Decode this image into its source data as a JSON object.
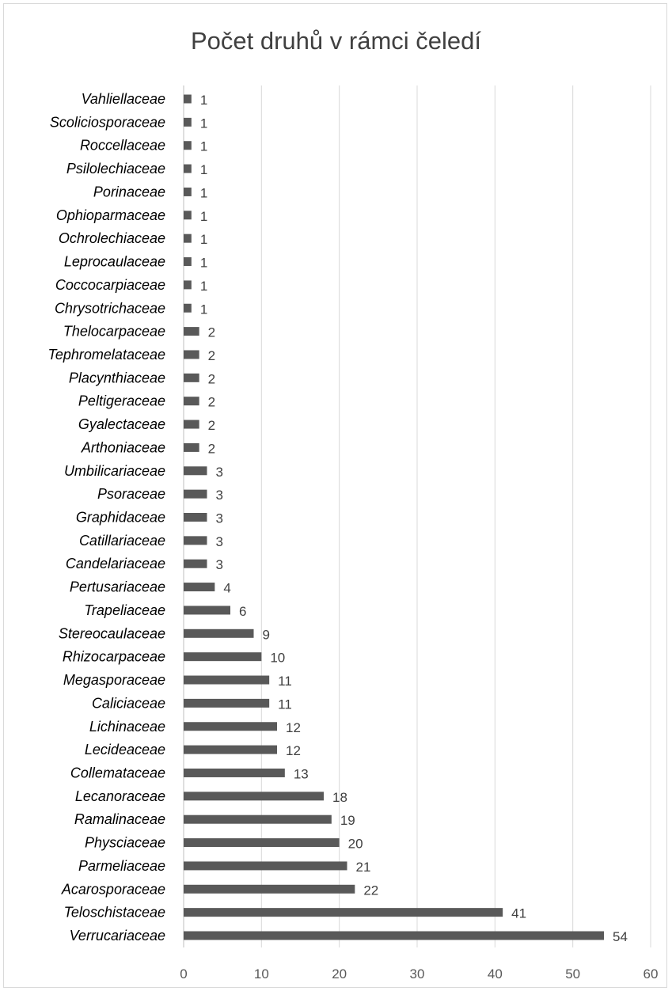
{
  "chart_data": {
    "type": "bar",
    "orientation": "horizontal",
    "title": "Počet druhů v rámci čeledí",
    "xlabel": "",
    "ylabel": "",
    "xlim": [
      0,
      60
    ],
    "x_ticks": [
      0,
      10,
      20,
      30,
      40,
      50,
      60
    ],
    "grid": "vertical",
    "legend": "none",
    "bar_color": "#595959",
    "categories": [
      "Vahliellaceae",
      "Scoliciosporaceae",
      "Roccellaceae",
      "Psilolechiaceae",
      "Porinaceae",
      "Ophioparmaceae",
      "Ochrolechiaceae",
      "Leprocaulaceae",
      "Coccocarpiaceae",
      "Chrysotrichaceae",
      "Thelocarpaceae",
      "Tephromelataceae",
      "Placynthiaceae",
      "Peltigeraceae",
      "Gyalectaceae",
      "Arthoniaceae",
      "Umbilicariaceae",
      "Psoraceae",
      "Graphidaceae",
      "Catillariaceae",
      "Candelariaceae",
      "Pertusariaceae",
      "Trapeliaceae",
      "Stereocaulaceae",
      "Rhizocarpaceae",
      "Megasporaceae",
      "Caliciaceae",
      "Lichinaceae",
      "Lecideaceae",
      "Collemataceae",
      "Lecanoraceae",
      "Ramalinaceae",
      "Physciaceae",
      "Parmeliaceae",
      "Acarosporaceae",
      "Teloschistaceae",
      "Verrucariaceae"
    ],
    "values": [
      1,
      1,
      1,
      1,
      1,
      1,
      1,
      1,
      1,
      1,
      2,
      2,
      2,
      2,
      2,
      2,
      3,
      3,
      3,
      3,
      3,
      4,
      6,
      9,
      10,
      11,
      11,
      12,
      12,
      13,
      18,
      19,
      20,
      21,
      22,
      41,
      54
    ]
  }
}
